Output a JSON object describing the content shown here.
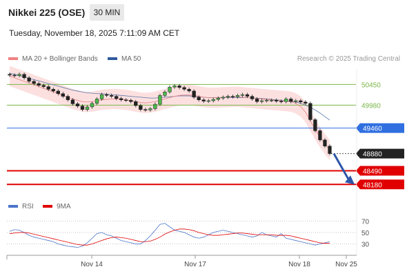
{
  "header": {
    "title": "Nikkei 225 (OSE)",
    "timeframe": "30 MIN"
  },
  "timestamp": "Tuesday, November 18, 2025 7:11:09 AM CET",
  "legend": {
    "items": [
      {
        "label": "MA 20 + Bollinger Bands",
        "color": "#f08080"
      },
      {
        "label": "MA 50",
        "color": "#2e5a9c"
      }
    ],
    "credit": "Research © 2025 Trading Central"
  },
  "rsi_legend": {
    "items": [
      {
        "label": "RSI",
        "color": "#4a74c9"
      },
      {
        "label": "9MA",
        "color": "#e00000"
      }
    ]
  },
  "chart_data": {
    "type": "candlestick",
    "x_ticks": [
      "Nov 14",
      "Nov 17",
      "Nov 18",
      "Nov 25"
    ],
    "ylim": [
      47950,
      50800
    ],
    "levels": [
      {
        "value": 50450,
        "label": "50450",
        "kind": "resistance",
        "color": "#7ab648"
      },
      {
        "value": 49980,
        "label": "49980",
        "kind": "resistance",
        "color": "#7ab648"
      },
      {
        "value": 49460,
        "label": "49460",
        "kind": "pivot",
        "color": "#2f6fe0"
      },
      {
        "value": 48880,
        "label": "48880",
        "kind": "last",
        "color": "#222222"
      },
      {
        "value": 48490,
        "label": "48490",
        "kind": "support",
        "color": "#e00000"
      },
      {
        "value": 48180,
        "label": "48180",
        "kind": "support",
        "color": "#e00000"
      }
    ],
    "target_arrow": {
      "from_value": 48880,
      "to_value": 48180
    },
    "close_series": [
      50660,
      50650,
      50680,
      50600,
      50520,
      50470,
      50430,
      50400,
      50340,
      50300,
      50240,
      50180,
      50100,
      50010,
      49960,
      49880,
      49940,
      50020,
      50120,
      50220,
      50200,
      50180,
      50130,
      50100,
      50090,
      50060,
      49970,
      49880,
      49870,
      49900,
      50000,
      50200,
      50280,
      50390,
      50420,
      50380,
      50340,
      50300,
      50160,
      50100,
      50070,
      50080,
      50110,
      50140,
      50160,
      50180,
      50170,
      50200,
      50220,
      50180,
      50120,
      50060,
      50080,
      50090,
      50090,
      50070,
      50060,
      50120,
      50060,
      50080,
      50050,
      50020,
      49650,
      49400,
      49190,
      49050,
      48880
    ],
    "ma20": [
      50640,
      50600,
      50560,
      50520,
      50480,
      50440,
      50400,
      50360,
      50320,
      50280,
      50240,
      50200,
      50160,
      50120,
      50090,
      50060,
      50050,
      50060,
      50080,
      50100,
      50110,
      50120,
      50120,
      50110,
      50100,
      50080,
      50060,
      50040,
      50030,
      50040,
      50060,
      50090,
      50120,
      50150,
      50180,
      50200,
      50210,
      50210,
      50200,
      50180,
      50160,
      50150,
      50150,
      50150,
      50160,
      50160,
      50170,
      50170,
      50160,
      50150,
      50140,
      50130,
      50120,
      50110,
      50100,
      50090,
      50080,
      50070,
      50060,
      50020,
      49950,
      49820,
      49620,
      49430,
      49250,
      49100,
      48960
    ],
    "ma50": [
      50700,
      50680,
      50650,
      50620,
      50590,
      50560,
      50530,
      50500,
      50470,
      50440,
      50410,
      50380,
      50350,
      50320,
      50300,
      50280,
      50260,
      50250,
      50240,
      50240,
      50230,
      50220,
      50210,
      50200,
      50190,
      50180,
      50170,
      50160,
      50150,
      50140,
      50140,
      50150,
      50160,
      50170,
      50180,
      50190,
      50190,
      50190,
      50180,
      50170,
      50160,
      50150,
      50150,
      50150,
      50150,
      50150,
      50150,
      50150,
      50150,
      50150,
      50140,
      50140,
      50130,
      50120,
      50110,
      50100,
      50090,
      50080,
      50070,
      50050,
      50020,
      49980,
      49930,
      49870,
      49800,
      49720,
      49640
    ],
    "rsi": {
      "ticks": [
        70,
        50,
        30
      ],
      "ylim": [
        15,
        80
      ],
      "rsi_series": [
        52,
        55,
        54,
        50,
        45,
        42,
        40,
        38,
        36,
        34,
        30,
        28,
        26,
        25,
        24,
        26,
        32,
        40,
        48,
        50,
        46,
        44,
        40,
        36,
        34,
        32,
        30,
        30,
        36,
        44,
        54,
        64,
        66,
        60,
        54,
        52,
        50,
        46,
        42,
        40,
        42,
        46,
        50,
        52,
        54,
        52,
        50,
        48,
        46,
        44,
        42,
        44,
        50,
        46,
        44,
        42,
        48,
        40,
        38,
        36,
        34,
        32,
        30,
        28,
        30,
        32,
        34
      ],
      "ma_series": [
        48,
        49,
        50,
        50,
        49,
        47,
        45,
        43,
        41,
        39,
        37,
        35,
        33,
        31,
        29,
        28,
        28,
        30,
        33,
        36,
        39,
        41,
        42,
        41,
        40,
        38,
        36,
        34,
        34,
        35,
        38,
        42,
        47,
        51,
        54,
        56,
        56,
        55,
        53,
        50,
        48,
        46,
        45,
        45,
        46,
        47,
        48,
        49,
        49,
        48,
        47,
        46,
        46,
        46,
        46,
        45,
        45,
        45,
        44,
        42,
        40,
        38,
        36,
        34,
        32,
        31,
        31
      ]
    }
  }
}
